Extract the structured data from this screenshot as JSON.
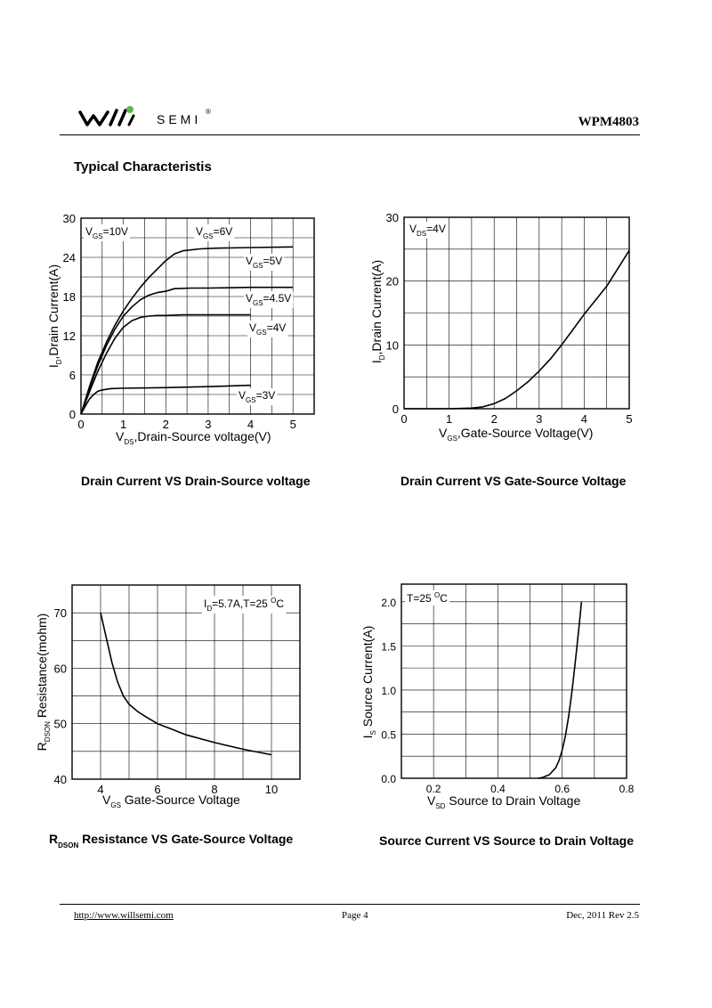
{
  "header": {
    "brand": "SEMI",
    "registered": "®",
    "part_number": "WPM4803"
  },
  "section_title": "Typical  Characteristis",
  "captions": {
    "c1": "Drain Current VS Drain-Source voltage",
    "c2": "Drain Current VS Gate-Source Voltage",
    "c3_main": "R",
    "c3_sub": "DSON",
    "c3_rest": " Resistance VS Gate-Source Voltage",
    "c4": "Source Current VS Source to Drain Voltage"
  },
  "footer": {
    "url": "http://www.willsemi.com",
    "page": "Page 4",
    "date": "Dec, 2011 Rev 2.5"
  },
  "chart_data": [
    {
      "type": "line",
      "title": "Drain Current VS Drain-Source voltage",
      "xlabel": {
        "main": "V",
        "sub": "DS",
        "rest": ",Drain-Source voltage(V)"
      },
      "ylabel": {
        "main": "I",
        "sub": "D",
        "rest": ",Drain Current(A)"
      },
      "xlim": [
        0,
        5.5
      ],
      "ylim": [
        0,
        30
      ],
      "xticks": [
        0,
        1,
        2,
        3,
        4,
        5
      ],
      "yticks": [
        0,
        6,
        12,
        18,
        24,
        30
      ],
      "xgrid_step": 0.5,
      "ygrid_step": 3,
      "series": [
        {
          "name": "VGS=10V",
          "x": [
            0,
            0.2,
            0.4,
            0.6,
            0.8,
            1.0,
            1.2,
            1.4,
            1.6,
            1.8,
            2.0,
            2.2,
            2.4,
            2.8,
            3.2,
            4.0,
            5.0
          ],
          "y": [
            0,
            4.2,
            8.0,
            11.0,
            13.6,
            15.8,
            17.7,
            19.4,
            20.9,
            22.2,
            23.5,
            24.5,
            25.0,
            25.3,
            25.4,
            25.5,
            25.6
          ]
        },
        {
          "name": "VGS=4.5V",
          "x": [
            0,
            0.2,
            0.4,
            0.6,
            0.8,
            1.0,
            1.2,
            1.4,
            1.6,
            1.8,
            2.0,
            2.2,
            2.6,
            3.0,
            4.0,
            5.0
          ],
          "y": [
            0,
            3.9,
            7.5,
            10.5,
            13.0,
            15.0,
            16.4,
            17.5,
            18.2,
            18.6,
            18.8,
            19.2,
            19.3,
            19.3,
            19.4,
            19.4
          ]
        },
        {
          "name": "VGS=4V",
          "x": [
            0,
            0.2,
            0.4,
            0.6,
            0.8,
            1.0,
            1.2,
            1.4,
            1.6,
            1.8,
            2.0,
            2.4,
            3.0,
            4.0
          ],
          "y": [
            0,
            3.4,
            6.6,
            9.3,
            11.6,
            13.3,
            14.3,
            14.8,
            15.0,
            15.1,
            15.1,
            15.2,
            15.2,
            15.2
          ]
        },
        {
          "name": "VGS=3V",
          "x": [
            0,
            0.1,
            0.2,
            0.3,
            0.4,
            0.5,
            0.7,
            1.0,
            2.0,
            3.0,
            4.0
          ],
          "y": [
            0,
            1.2,
            2.3,
            3.0,
            3.5,
            3.7,
            3.9,
            3.95,
            4.05,
            4.2,
            4.4
          ]
        }
      ],
      "annotations": [
        {
          "main": "V",
          "sub": "GS",
          "rest": "=10V"
        },
        {
          "main": "V",
          "sub": "GS",
          "rest": "=6V"
        },
        {
          "main": "V",
          "sub": "GS",
          "rest": "=5V"
        },
        {
          "main": "V",
          "sub": "GS",
          "rest": "=4.5V"
        },
        {
          "main": "V",
          "sub": "GS",
          "rest": "=4V"
        },
        {
          "main": "V",
          "sub": "GS",
          "rest": "=3V"
        }
      ]
    },
    {
      "type": "line",
      "title": "Drain Current VS Gate-Source Voltage",
      "xlabel": {
        "main": "V",
        "sub": "GS",
        "rest": ",Gate-Source Voltage(V)"
      },
      "ylabel": {
        "main": "I",
        "sub": "D",
        "rest": ",Drain Current(A)"
      },
      "xlim": [
        0,
        5
      ],
      "ylim": [
        0,
        30
      ],
      "xticks": [
        0,
        1,
        2,
        3,
        4,
        5
      ],
      "yticks": [
        0,
        10,
        20,
        30
      ],
      "xgrid_step": 0.5,
      "ygrid_step": 5,
      "series": [
        {
          "name": "VDS=4V",
          "x": [
            0,
            1.0,
            1.5,
            1.75,
            2.0,
            2.25,
            2.5,
            2.75,
            3.0,
            3.25,
            3.5,
            3.75,
            4.0,
            4.25,
            4.5,
            4.75,
            5.0
          ],
          "y": [
            0,
            0,
            0.1,
            0.3,
            0.8,
            1.6,
            2.8,
            4.2,
            5.9,
            7.8,
            10.0,
            12.4,
            14.8,
            17.0,
            19.2,
            22.0,
            24.8
          ]
        }
      ],
      "annotations": [
        {
          "main": "V",
          "sub": "DS",
          "rest": "=4V"
        }
      ]
    },
    {
      "type": "line",
      "title": "RDSON Resistance VS Gate-Source Voltage",
      "xlabel": {
        "main": "V",
        "sub": "GS",
        "rest": " Gate-Source Voltage"
      },
      "ylabel": {
        "main": "R",
        "sub": "DSON",
        "rest": " Resistance(mohm)"
      },
      "xlim": [
        3,
        11
      ],
      "ylim": [
        40,
        75
      ],
      "xticks": [
        4,
        6,
        8,
        10
      ],
      "yticks": [
        40,
        50,
        60,
        70
      ],
      "xgrid_step": 1,
      "ygrid_step": 5,
      "series": [
        {
          "name": "ID=5.7A,T=25C",
          "x": [
            4.0,
            4.2,
            4.4,
            4.6,
            4.8,
            5.0,
            5.3,
            5.6,
            6.0,
            6.5,
            7.0,
            8.0,
            9.0,
            10.0
          ],
          "y": [
            70.0,
            65.5,
            61.0,
            57.5,
            55.0,
            53.5,
            52.2,
            51.2,
            50.0,
            49.0,
            48.0,
            46.6,
            45.4,
            44.4
          ]
        }
      ],
      "annotations": [
        {
          "main": "I",
          "sub": "D",
          "rest": "=5.7A,T=25 ",
          "sup": "O",
          "tail": "C"
        }
      ]
    },
    {
      "type": "line",
      "title": "Source Current VS Source to Drain Voltage",
      "xlabel": {
        "main": "V",
        "sub": "SD",
        "rest": " Source to Drain Voltage"
      },
      "ylabel": {
        "main": "I",
        "sub": "S",
        "rest": " Source Current(A)"
      },
      "xlim": [
        0.1,
        0.8
      ],
      "ylim": [
        0,
        2.2
      ],
      "xticks": [
        0.2,
        0.4,
        0.6,
        0.8
      ],
      "yticks": [
        0.0,
        0.5,
        1.0,
        1.5,
        2.0
      ],
      "xgrid_step": 0.1,
      "ygrid_step": 0.25,
      "series": [
        {
          "name": "T=25C",
          "x": [
            0.525,
            0.54,
            0.56,
            0.58,
            0.59,
            0.6,
            0.61,
            0.62,
            0.63,
            0.64,
            0.65,
            0.66
          ],
          "y": [
            0,
            0.01,
            0.04,
            0.12,
            0.2,
            0.32,
            0.48,
            0.7,
            0.98,
            1.3,
            1.64,
            2.0
          ]
        }
      ],
      "annotations": [
        {
          "main": "T=25 ",
          "sup": "O",
          "tail": "C"
        }
      ]
    }
  ]
}
